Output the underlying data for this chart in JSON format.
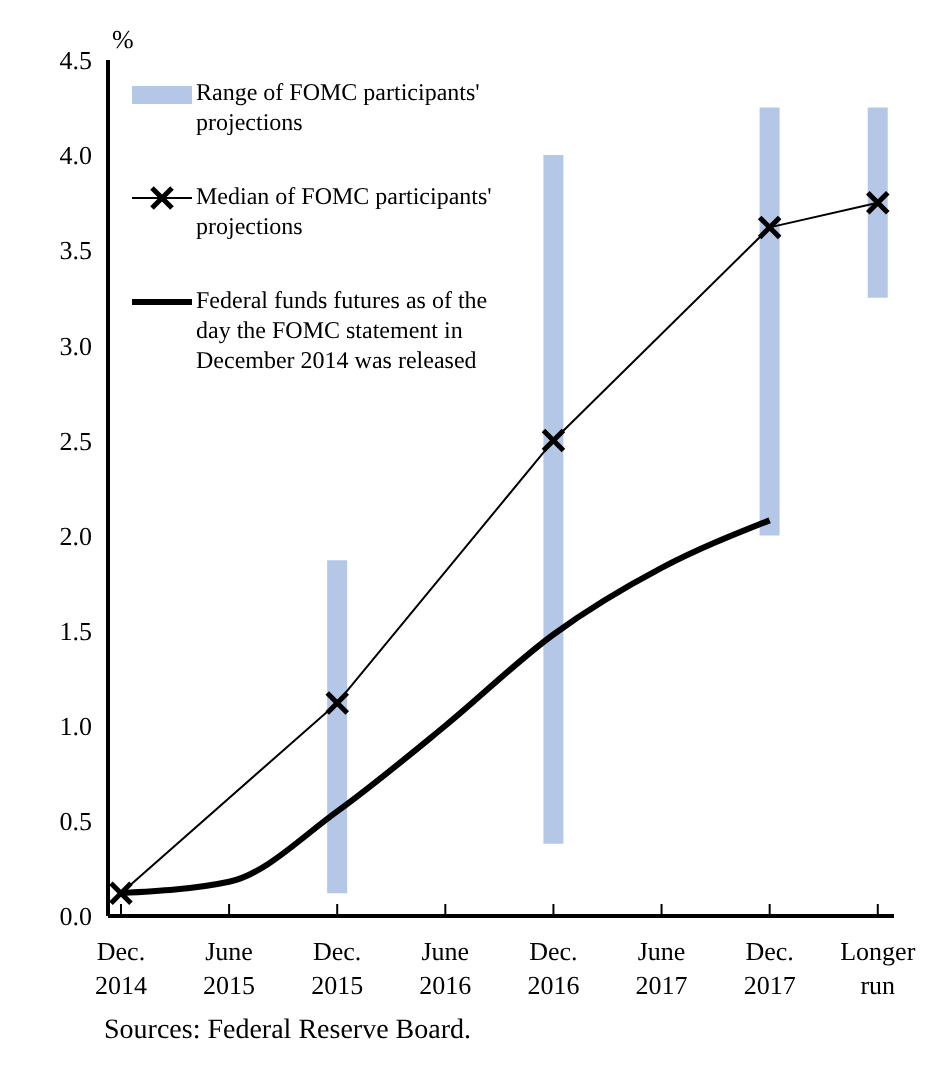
{
  "chart_data": {
    "type": "line",
    "ylabel": "%",
    "categories": [
      "Dec. 2014",
      "June 2015",
      "Dec. 2015",
      "June 2016",
      "Dec. 2016",
      "June 2017",
      "Dec. 2017",
      "Longer run"
    ],
    "series": [
      {
        "type": "bar",
        "name": "Range of FOMC participants' projections",
        "color": "#b4c7e7",
        "base": [
          null,
          null,
          0.12,
          null,
          0.38,
          null,
          2.0,
          3.25
        ],
        "values": [
          null,
          null,
          1.75,
          null,
          3.62,
          null,
          2.25,
          1.0
        ]
      },
      {
        "name": "Median of FOMC participants' projections",
        "color": "#000000",
        "marker": "cross",
        "values": [
          0.12,
          null,
          1.12,
          null,
          2.5,
          null,
          3.62,
          3.75
        ]
      },
      {
        "name": "Federal funds futures as of the day the FOMC statement in December 2014 was released",
        "color": "#000000",
        "marker": "none",
        "values": [
          0.12,
          0.18,
          0.55,
          1.0,
          1.48,
          1.83,
          2.08,
          null
        ]
      }
    ],
    "ylim": [
      0,
      4.5
    ],
    "yticks": [
      {
        "value": 0,
        "label": "0.0"
      },
      0.5,
      {
        "value": 1,
        "label": "1.0"
      },
      1.5,
      {
        "value": 2,
        "label": "2.0"
      },
      2.5,
      {
        "value": 3,
        "label": "3.0"
      },
      3.5,
      {
        "value": 4,
        "label": "4.0"
      },
      4.5
    ],
    "grid": false,
    "legend": "top left",
    "annotations": [
      "Sources: Federal Reserve Board."
    ]
  }
}
